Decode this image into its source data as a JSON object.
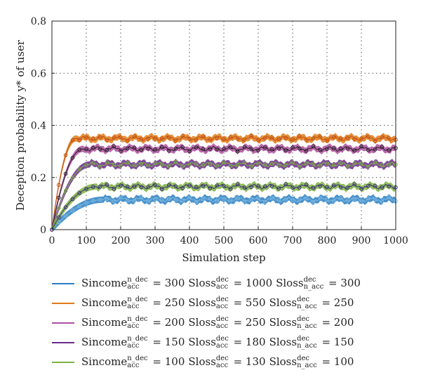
{
  "chart_data": {
    "type": "line",
    "xlabel": "Simulation step",
    "ylabel": "Deception probability y* of user",
    "xlim": [
      0,
      1000
    ],
    "ylim": [
      0,
      0.8
    ],
    "xticks": [
      "0",
      "100",
      "200",
      "300",
      "400",
      "500",
      "600",
      "700",
      "800",
      "900",
      "1000"
    ],
    "yticks": [
      "0",
      "0.2",
      "0.4",
      "0.6",
      "0.8"
    ],
    "grid": true,
    "legend_position": "below",
    "series": [
      {
        "color": "#2a7fc4",
        "marker_color": "#7fb9e0",
        "steady": 0.115,
        "rise_end": 150,
        "legend": {
          "a_sup": "n_dec",
          "a_sub": "acc",
          "a_val": "300",
          "b_sup": "dec",
          "b_sub": "acc",
          "b_val": "1000",
          "c_sup": "dec",
          "c_sub": "n_acc",
          "c_val": "300"
        }
      },
      {
        "color": "#e07b1a",
        "marker_color": "#c05010",
        "steady": 0.35,
        "rise_end": 70,
        "legend": {
          "a_sup": "n_dec",
          "a_sub": "acc",
          "a_val": "250",
          "b_sup": "dec",
          "b_sub": "acc",
          "b_val": "550",
          "c_sup": "dec",
          "c_sub": "n_acc",
          "c_val": "250"
        }
      },
      {
        "color": "#b04fa0",
        "marker_color": "#222222",
        "steady": 0.31,
        "rise_end": 90,
        "legend": {
          "a_sup": "n_dec",
          "a_sub": "acc",
          "a_val": "200",
          "b_sup": "dec",
          "b_sub": "acc",
          "b_val": "250",
          "c_sup": "dec",
          "c_sub": "n_acc",
          "c_val": "200"
        }
      },
      {
        "color": "#6a2a8a",
        "marker_color": "#7cb342",
        "steady": 0.25,
        "rise_end": 110,
        "legend": {
          "a_sup": "n_dec",
          "a_sub": "acc",
          "a_val": "150",
          "b_sup": "dec",
          "b_sub": "acc",
          "b_val": "180",
          "c_sup": "dec",
          "c_sub": "n_acc",
          "c_val": "150"
        }
      },
      {
        "color": "#7cb342",
        "marker_color": "#3b2a7a",
        "steady": 0.165,
        "rise_end": 130,
        "legend": {
          "a_sup": "n_dec",
          "a_sub": "acc",
          "a_val": "100",
          "b_sup": "dec",
          "b_sub": "acc",
          "b_val": "130",
          "c_sup": "dec",
          "c_sub": "n_acc",
          "c_val": "100"
        }
      }
    ]
  },
  "legend_terms": {
    "sincome": "Sincome",
    "sloss": "Sloss",
    "eq": "="
  }
}
